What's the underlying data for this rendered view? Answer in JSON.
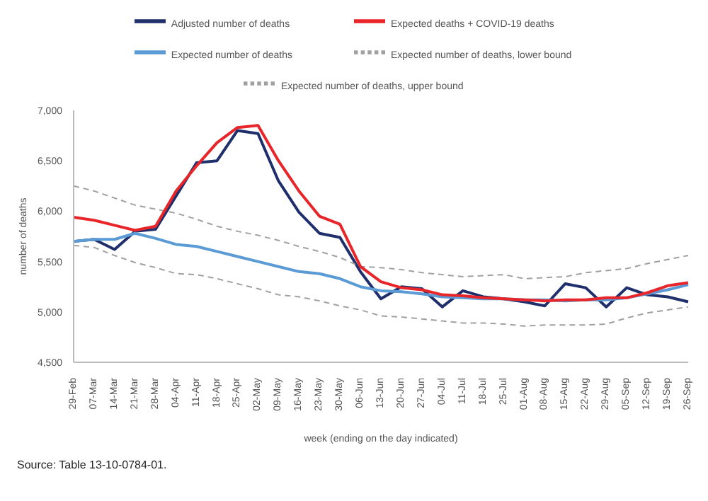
{
  "chart_data": {
    "type": "line",
    "xlabel": "week (ending on the day indicated)",
    "ylabel": "number of deaths",
    "categories": [
      "29-Feb",
      "07-Mar",
      "14-Mar",
      "21-Mar",
      "28-Mar",
      "04-Apr",
      "11-Apr",
      "18-Apr",
      "25-Apr",
      "02-May",
      "09-May",
      "16-May",
      "23-May",
      "30-May",
      "06-Jun",
      "13-Jun",
      "20-Jun",
      "27-Jun",
      "04-Jul",
      "11-Jul",
      "18-Jul",
      "25-Jul",
      "01-Aug",
      "08-Aug",
      "15-Aug",
      "22-Aug",
      "29-Aug",
      "05-Sep",
      "12-Sep",
      "19-Sep",
      "26-Sep"
    ],
    "series": [
      {
        "name": "Adjusted number of deaths",
        "color": "#1f2f6b",
        "values": [
          5700,
          5720,
          5620,
          5800,
          5820,
          6150,
          6480,
          6500,
          6800,
          6770,
          6300,
          5990,
          5780,
          5740,
          5400,
          5130,
          5250,
          5230,
          5050,
          5210,
          5150,
          5130,
          5100,
          5060,
          5280,
          5240,
          5050,
          5240,
          5170,
          5150,
          5100
        ]
      },
      {
        "name": "Expected number of deaths",
        "color": "#5b9bd5",
        "values": [
          5700,
          5720,
          5720,
          5780,
          5730,
          5670,
          5650,
          5600,
          5550,
          5500,
          5450,
          5400,
          5380,
          5330,
          5250,
          5210,
          5200,
          5180,
          5150,
          5140,
          5130,
          5130,
          5120,
          5120,
          5110,
          5120,
          5120,
          5140,
          5180,
          5220,
          5270
        ]
      },
      {
        "name": "Expected number of deaths, upper bound",
        "color": "#a0a0a0",
        "line_style": "dashed",
        "values": [
          6250,
          6200,
          6130,
          6060,
          6020,
          5980,
          5920,
          5850,
          5800,
          5760,
          5710,
          5650,
          5600,
          5540,
          5450,
          5440,
          5420,
          5390,
          5370,
          5350,
          5360,
          5370,
          5330,
          5340,
          5350,
          5390,
          5410,
          5430,
          5480,
          5520,
          5560
        ]
      },
      {
        "name": "Expected number of deaths, lower bound",
        "color": "#a0a0a0",
        "line_style": "dashed",
        "values": [
          5660,
          5640,
          5560,
          5490,
          5440,
          5380,
          5370,
          5330,
          5280,
          5230,
          5170,
          5150,
          5110,
          5060,
          5020,
          4960,
          4950,
          4930,
          4910,
          4890,
          4890,
          4880,
          4860,
          4870,
          4870,
          4870,
          4880,
          4940,
          4990,
          5020,
          5050
        ]
      },
      {
        "name": "Expected deaths + COVID-19 deaths",
        "color": "#e8262a",
        "values": [
          5940,
          5910,
          5860,
          5810,
          5850,
          6200,
          6450,
          6680,
          6830,
          6850,
          6500,
          6200,
          5950,
          5870,
          5450,
          5300,
          5240,
          5220,
          5170,
          5160,
          5140,
          5130,
          5120,
          5110,
          5120,
          5120,
          5140,
          5140,
          5190,
          5260,
          5290
        ]
      }
    ],
    "ylim": [
      4500,
      7000
    ],
    "yticks": [
      {
        "value": 4500,
        "label": "4,500"
      },
      {
        "value": 5000,
        "label": "5,000"
      },
      {
        "value": 5500,
        "label": "5,500"
      },
      {
        "value": 6000,
        "label": "6,000"
      },
      {
        "value": 6500,
        "label": "6,500"
      },
      {
        "value": 7000,
        "label": "7,000"
      }
    ],
    "grid": false,
    "legend": "top",
    "marker": "none",
    "line_style": "solid",
    "annotations": [
      "Source: Table 13-10-0784-01."
    ]
  }
}
